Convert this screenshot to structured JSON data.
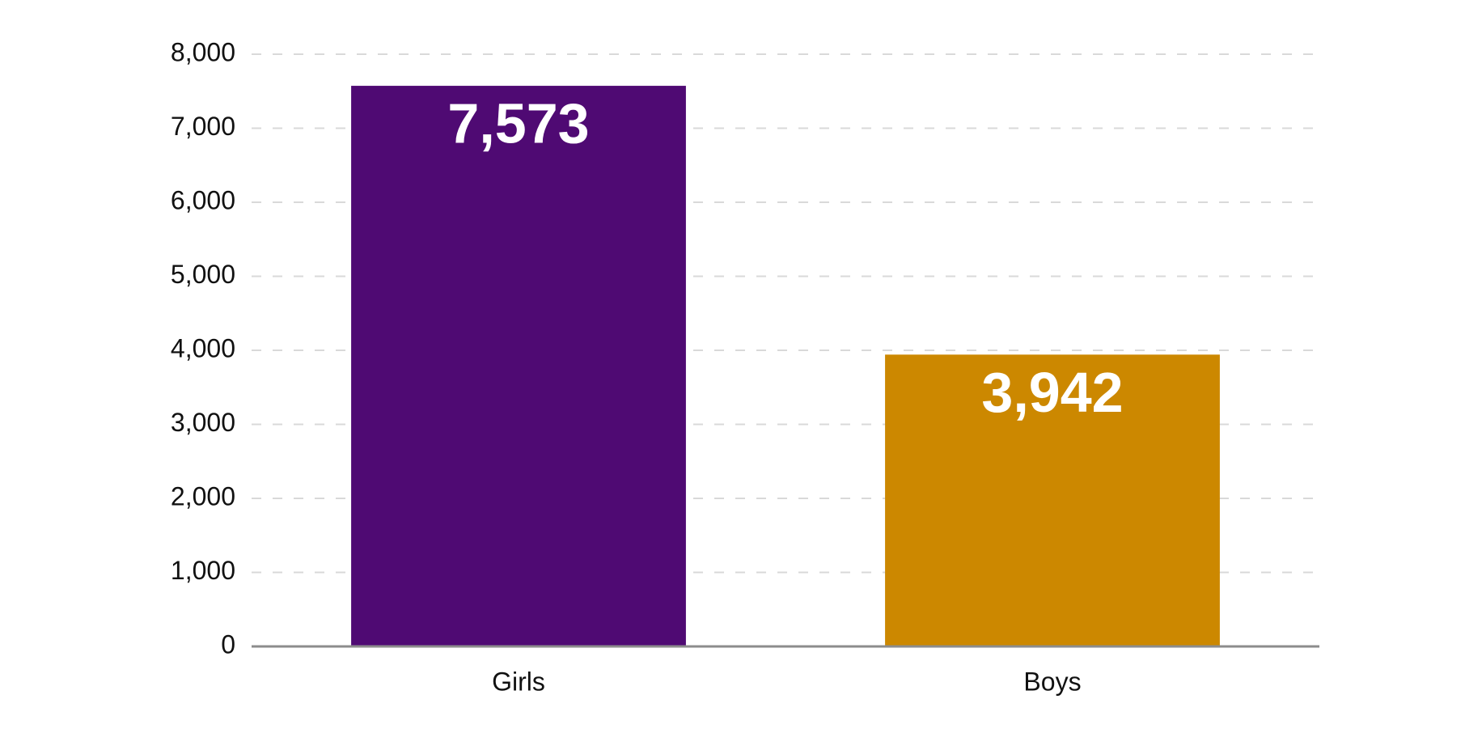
{
  "chart_data": {
    "type": "bar",
    "categories": [
      "Girls",
      "Boys"
    ],
    "values": [
      7573,
      3942
    ],
    "value_labels": [
      "7,573",
      "3,942"
    ],
    "colors": [
      "#4f0a73",
      "#cc8800"
    ],
    "ylim": [
      0,
      8000
    ],
    "yticks": [
      0,
      {
        "value": 1000,
        "label": "1,000"
      },
      {
        "value": 2000,
        "label": "2,000"
      },
      {
        "value": 3000,
        "label": "3,000"
      },
      {
        "value": 4000,
        "label": "4,000"
      },
      {
        "value": 5000,
        "label": "5,000"
      },
      {
        "value": 6000,
        "label": "6,000"
      },
      {
        "value": 7000,
        "label": "7,000"
      },
      {
        "value": 8000,
        "label": "8,000"
      }
    ],
    "grid": true
  }
}
